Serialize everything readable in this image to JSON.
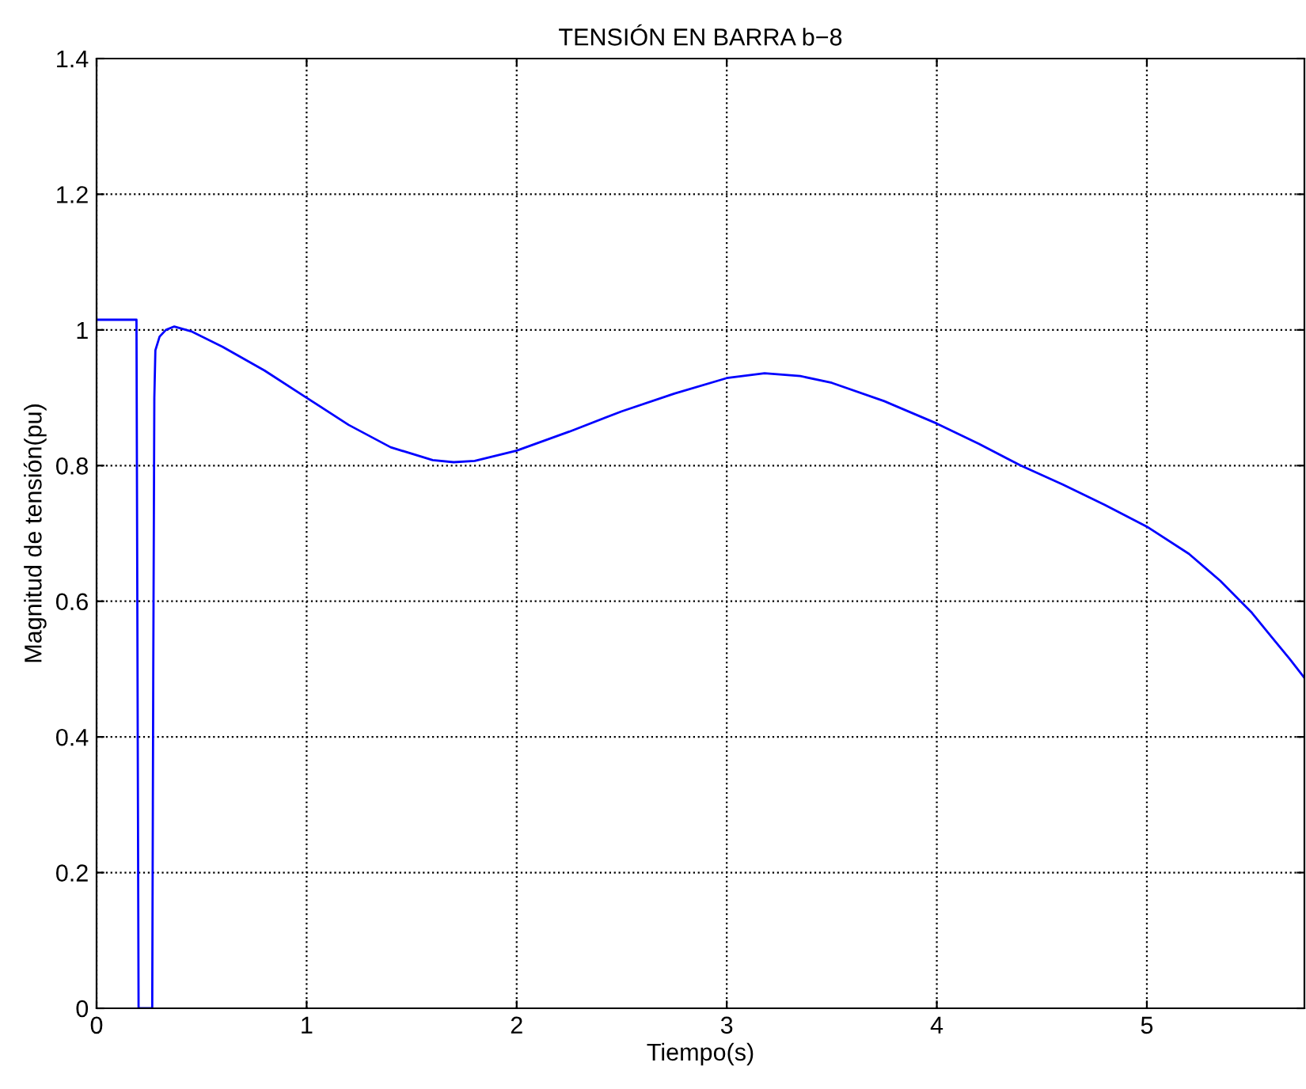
{
  "chart_data": {
    "type": "line",
    "title": "TENSIÓN EN BARRA b−8",
    "xlabel": "Tiempo(s)",
    "ylabel": "Magnitud de tensión(pu)",
    "x": [
      0,
      0.19,
      0.195,
      0.2,
      0.265,
      0.27,
      0.275,
      0.28,
      0.3,
      0.33,
      0.37,
      0.45,
      0.6,
      0.8,
      1.0,
      1.2,
      1.4,
      1.6,
      1.7,
      1.8,
      2.0,
      2.25,
      2.5,
      2.75,
      3.0,
      3.18,
      3.35,
      3.5,
      3.75,
      4.0,
      4.2,
      4.4,
      4.6,
      4.8,
      5.0,
      5.2,
      5.35,
      5.5,
      5.6,
      5.68,
      5.75
    ],
    "series": [
      {
        "color": "#0000ff",
        "values": [
          1.015,
          1.015,
          0.5,
          0,
          0,
          0.5,
          0.9,
          0.97,
          0.99,
          1.0,
          1.005,
          0.998,
          0.975,
          0.94,
          0.9,
          0.86,
          0.827,
          0.808,
          0.805,
          0.807,
          0.822,
          0.85,
          0.88,
          0.906,
          0.929,
          0.936,
          0.932,
          0.922,
          0.895,
          0.862,
          0.832,
          0.8,
          0.772,
          0.742,
          0.71,
          0.67,
          0.63,
          0.583,
          0.545,
          0.515,
          0.487
        ]
      }
    ],
    "xlim": [
      0,
      5.75
    ],
    "ylim": [
      0,
      1.4
    ],
    "xticks": [
      0,
      1,
      2,
      3,
      4,
      5
    ],
    "yticks": [
      0,
      0.2,
      0.4,
      0.6,
      0.8,
      1,
      1.2,
      1.4
    ],
    "grid": true,
    "legend": false,
    "marker": "none",
    "line_style": "solid"
  }
}
